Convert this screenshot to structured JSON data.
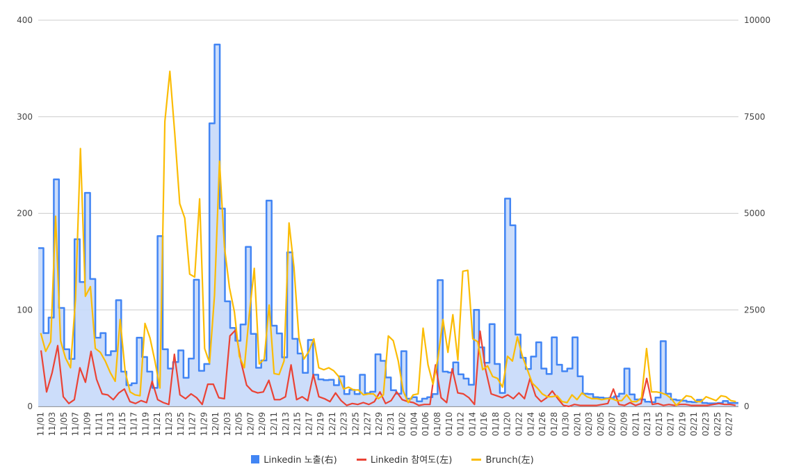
{
  "chart_data": {
    "type": "line",
    "left_axis": {
      "min": 0,
      "max": 400,
      "ticks": [
        "0",
        "100",
        "200",
        "300",
        "400"
      ]
    },
    "right_axis": {
      "min": 0,
      "max": 10000,
      "ticks": [
        "0",
        "2500",
        "5000",
        "7500",
        "10000"
      ]
    },
    "grid": true,
    "legend_position": "bottom",
    "x_tick_labels": [
      "11/01",
      "11/03",
      "11/05",
      "11/07",
      "11/09",
      "11/11",
      "11/13",
      "11/15",
      "11/17",
      "11/19",
      "11/21",
      "11/23",
      "11/25",
      "11/27",
      "11/29",
      "12/01",
      "12/03",
      "12/05",
      "12/07",
      "12/09",
      "12/11",
      "12/13",
      "12/15",
      "12/17",
      "12/19",
      "12/21",
      "12/23",
      "12/25",
      "12/27",
      "12/29",
      "12/31",
      "01/02",
      "01/04",
      "01/06",
      "01/08",
      "01/10",
      "01/12",
      "01/14",
      "01/16",
      "01/18",
      "01/20",
      "01/22",
      "01/24",
      "01/26",
      "01/28",
      "01/30",
      "02/01",
      "02/03",
      "02/05",
      "02/07",
      "02/09",
      "02/11",
      "02/13",
      "02/15",
      "02/17",
      "02/19",
      "02/21",
      "02/23",
      "02/25",
      "02/27"
    ],
    "series": [
      {
        "name": "Linkedin 노출(右)",
        "axis": "right",
        "style": "stepped-area",
        "color": "#4285f4",
        "fill": "#c6d9f9",
        "values": [
          4100,
          1900,
          2300,
          5880,
          2550,
          1480,
          1230,
          4330,
          3220,
          5530,
          3300,
          1780,
          1900,
          1330,
          1430,
          2750,
          900,
          550,
          600,
          1780,
          1280,
          900,
          480,
          4410,
          1480,
          980,
          1150,
          1450,
          740,
          1240,
          3280,
          920,
          1100,
          7330,
          9370,
          5120,
          2720,
          2030,
          1700,
          2120,
          4130,
          1880,
          1000,
          1190,
          5330,
          2090,
          1890,
          1270,
          3990,
          1750,
          1370,
          870,
          1720,
          820,
          700,
          680,
          690,
          550,
          780,
          320,
          430,
          320,
          820,
          340,
          380,
          1350,
          1180,
          750,
          420,
          330,
          1430,
          200,
          240,
          130,
          200,
          240,
          320,
          3270,
          900,
          880,
          1140,
          830,
          720,
          560,
          2500,
          1530,
          1130,
          2130,
          1100,
          350,
          5380,
          4690,
          1860,
          1260,
          970,
          1290,
          1660,
          980,
          840,
          1790,
          1080,
          910,
          980,
          1790,
          780,
          330,
          320,
          240,
          230,
          210,
          220,
          260,
          330,
          980,
          310,
          180,
          180,
          120,
          110,
          230,
          1690,
          330,
          180,
          160,
          150,
          120,
          110,
          170,
          90,
          80,
          80,
          90,
          140,
          90,
          90
        ]
      },
      {
        "name": "Linkedin 참여도(左)",
        "axis": "left",
        "style": "line",
        "color": "#ea4335",
        "values": [
          58,
          15,
          35,
          63,
          10,
          3,
          7,
          40,
          25,
          57,
          28,
          13,
          12,
          7,
          14,
          18,
          5,
          3,
          6,
          4,
          26,
          7,
          4,
          2,
          54,
          12,
          8,
          13,
          9,
          2,
          23,
          23,
          9,
          8,
          73,
          79,
          46,
          22,
          16,
          14,
          15,
          27,
          7,
          7,
          10,
          43,
          7,
          10,
          6,
          33,
          10,
          8,
          5,
          14,
          6,
          1,
          3,
          2,
          4,
          2,
          5,
          15,
          3,
          6,
          15,
          7,
          5,
          4,
          1,
          2,
          2,
          43,
          9,
          4,
          39,
          14,
          13,
          9,
          2,
          78,
          38,
          13,
          11,
          9,
          12,
          8,
          14,
          8,
          29,
          11,
          5,
          9,
          16,
          8,
          1,
          0,
          2,
          1,
          1,
          1,
          1,
          2,
          3,
          18,
          2,
          1,
          4,
          1,
          3,
          29,
          2,
          3,
          1,
          2,
          1,
          2,
          2,
          1,
          1,
          1,
          1,
          2,
          3,
          2,
          2,
          1
        ]
      },
      {
        "name": "Brunch(左)",
        "axis": "left",
        "style": "line",
        "color": "#fbbc04",
        "values": [
          76,
          57,
          67,
          197,
          68,
          50,
          40,
          111,
          267,
          114,
          124,
          60,
          56,
          47,
          35,
          26,
          90,
          36,
          15,
          12,
          11,
          86,
          71,
          47,
          19,
          295,
          347,
          282,
          210,
          195,
          137,
          134,
          215,
          60,
          45,
          115,
          254,
          165,
          123,
          98,
          52,
          40,
          95,
          143,
          44,
          49,
          105,
          34,
          33,
          47,
          190,
          144,
          71,
          49,
          57,
          70,
          40,
          38,
          40,
          37,
          31,
          18,
          20,
          17,
          17,
          12,
          13,
          13,
          8,
          12,
          73,
          68,
          47,
          16,
          4,
          12,
          13,
          81,
          43,
          23,
          50,
          90,
          56,
          95,
          48,
          140,
          141,
          70,
          67,
          38,
          42,
          31,
          29,
          20,
          52,
          47,
          72,
          52,
          38,
          24,
          19,
          13,
          10,
          10,
          11,
          5,
          4,
          12,
          7,
          14,
          10,
          8,
          8,
          7,
          8,
          8,
          6,
          6,
          12,
          5,
          5,
          9,
          60,
          15,
          15,
          14,
          12,
          8,
          1,
          6,
          11,
          10,
          5,
          5,
          10,
          8,
          6,
          11,
          10,
          6,
          5
        ]
      }
    ]
  }
}
